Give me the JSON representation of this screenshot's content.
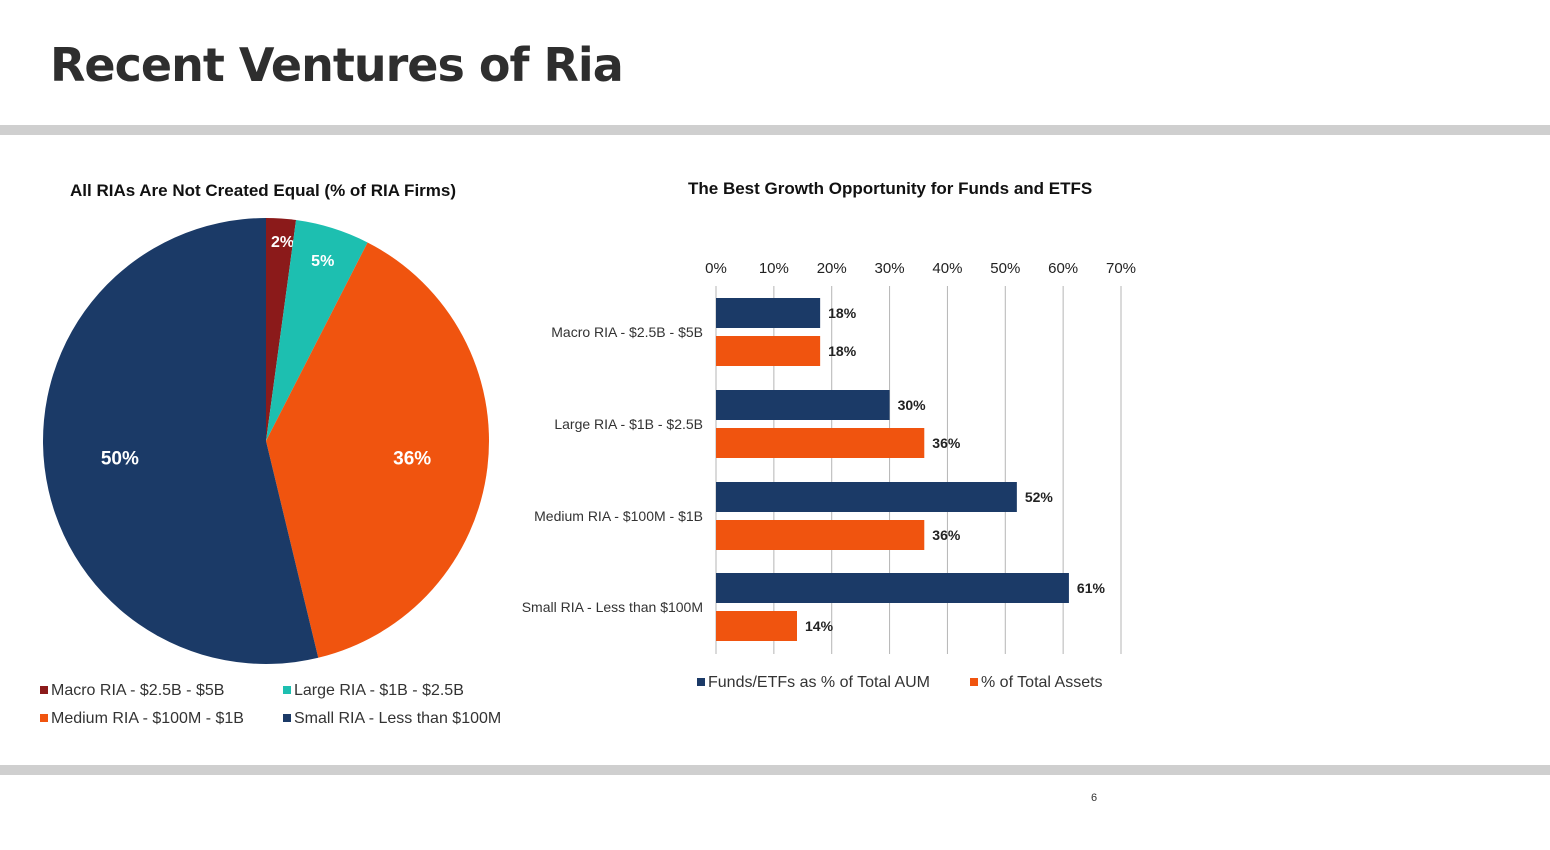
{
  "page": {
    "title": "Recent Ventures of Ria",
    "page_number": "6"
  },
  "colors": {
    "navy": "#1b3a67",
    "orange": "#f0540f",
    "teal": "#1dbfb0",
    "maroon": "#8b1a1a",
    "rule": "#cfcfcf"
  },
  "chart_data": [
    {
      "type": "pie",
      "title": "All RIAs Are Not Created Equal (% of RIA Firms)",
      "slices": [
        {
          "name": "Macro RIA - $2.5B - $5B",
          "value": 2,
          "label": "2%",
          "color": "#8b1a1a"
        },
        {
          "name": "Large RIA - $1B - $2.5B",
          "value": 5,
          "label": "5%",
          "color": "#1dbfb0"
        },
        {
          "name": "Medium RIA - $100M - $1B",
          "value": 36,
          "label": "36%",
          "color": "#f0540f"
        },
        {
          "name": "Small RIA - Less than $100M",
          "value": 50,
          "label": "50%",
          "color": "#1b3a67"
        }
      ],
      "legend_placement": "bottom"
    },
    {
      "type": "bar",
      "orientation": "horizontal",
      "title": "The Best Growth Opportunity for Funds and ETFS",
      "categories": [
        "Macro RIA - $2.5B - $5B",
        "Large RIA - $1B - $2.5B",
        "Medium RIA - $100M - $1B",
        "Small RIA - Less than $100M"
      ],
      "series": [
        {
          "name": "Funds/ETFs as % of Total AUM",
          "values": [
            18,
            30,
            52,
            61
          ],
          "labels": [
            "18%",
            "30%",
            "52%",
            "61%"
          ],
          "color": "#1b3a67"
        },
        {
          "name": "% of Total Assets",
          "values": [
            18,
            36,
            36,
            14
          ],
          "labels": [
            "18%",
            "36%",
            "36%",
            "14%"
          ],
          "color": "#f0540f"
        }
      ],
      "xlim": [
        0,
        70
      ],
      "xticks": [
        0,
        10,
        20,
        30,
        40,
        50,
        60,
        70
      ],
      "xtick_labels": [
        "0%",
        "10%",
        "20%",
        "30%",
        "40%",
        "50%",
        "60%",
        "70%"
      ],
      "x_axis_position": "top",
      "grid": true,
      "legend_placement": "bottom"
    }
  ]
}
